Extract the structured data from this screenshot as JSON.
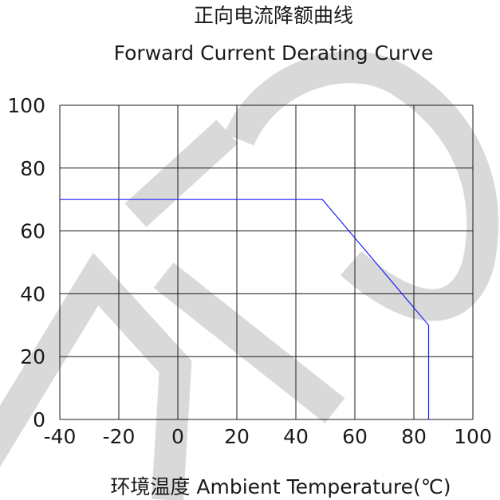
{
  "chart_data": {
    "type": "line",
    "title": "正向电流降额曲线",
    "subtitle": "Forward Current Derating Curve",
    "xlabel": "环境温度  Ambient Temperature(℃)",
    "ylabel": "",
    "xlim": [
      -40,
      100
    ],
    "ylim": [
      0,
      100
    ],
    "x_ticks": [
      "-40",
      "-20",
      "0",
      "20",
      "40",
      "60",
      "80",
      "100"
    ],
    "y_ticks": [
      "100",
      "80",
      "60",
      "40",
      "20",
      "0"
    ],
    "grid": true,
    "series": [
      {
        "color": "#1f1fff",
        "points": [
          [
            -40,
            70
          ],
          [
            49,
            70
          ],
          [
            85,
            30
          ],
          [
            85,
            0
          ]
        ]
      }
    ],
    "watermark_text": "DTO",
    "watermark_color": "#d9d9d9"
  }
}
